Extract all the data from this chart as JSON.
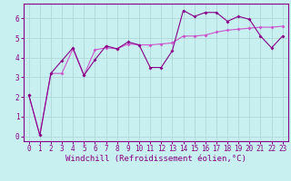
{
  "xlabel": "Windchill (Refroidissement éolien,°C)",
  "bg_color": "#c8f0f0",
  "grid_color": "#b0d8d8",
  "line_color1": "#880088",
  "line_color2": "#cc55cc",
  "x_ticks": [
    0,
    1,
    2,
    3,
    4,
    5,
    6,
    7,
    8,
    9,
    10,
    11,
    12,
    13,
    14,
    15,
    16,
    17,
    18,
    19,
    20,
    21,
    22,
    23
  ],
  "y_ticks": [
    0,
    1,
    2,
    3,
    4,
    5,
    6
  ],
  "ylim": [
    -0.25,
    6.75
  ],
  "xlim": [
    -0.5,
    23.5
  ],
  "series1_x": [
    0,
    1,
    2,
    3,
    4,
    5,
    6,
    7,
    8,
    9,
    10,
    11,
    12,
    13,
    14,
    15,
    16,
    17,
    18,
    19,
    20,
    21,
    22,
    23
  ],
  "series1_y": [
    2.1,
    0.05,
    3.2,
    3.85,
    4.5,
    3.1,
    3.9,
    4.6,
    4.45,
    4.8,
    4.65,
    3.5,
    3.5,
    4.35,
    6.4,
    6.1,
    6.3,
    6.3,
    5.85,
    6.1,
    5.95,
    5.1,
    4.5,
    5.1
  ],
  "series2_x": [
    0,
    1,
    2,
    3,
    4,
    5,
    6,
    7,
    8,
    9,
    10,
    11,
    12,
    13,
    14,
    15,
    16,
    17,
    18,
    19,
    20,
    21,
    22,
    23
  ],
  "series2_y": [
    2.1,
    0.05,
    3.2,
    3.2,
    4.45,
    3.1,
    4.4,
    4.5,
    4.45,
    4.7,
    4.65,
    4.65,
    4.7,
    4.75,
    5.1,
    5.1,
    5.15,
    5.3,
    5.4,
    5.45,
    5.5,
    5.55,
    5.55,
    5.6
  ],
  "tick_fontsize": 5.5,
  "label_fontsize": 6.5
}
